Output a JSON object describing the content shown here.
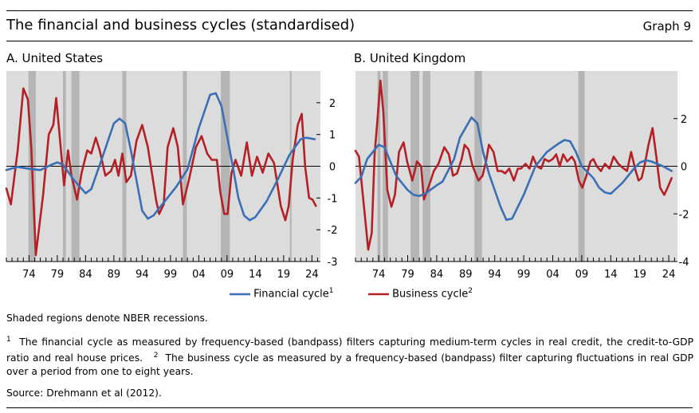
{
  "header": {
    "title": "The financial and business cycles (standardised)",
    "graph_label": "Graph 9"
  },
  "legend": {
    "financial": "Financial cycle",
    "financial_note": "1",
    "business": "Business cycle",
    "business_note": "2"
  },
  "colors": {
    "financial": "#3a6fb5",
    "business": "#b32025",
    "recession": "#b5b5b5",
    "panel_bg": "#dcdcdc"
  },
  "notes": {
    "shading": "Shaded regions denote NBER recessions.",
    "fn1_mark": "1",
    "fn1": "The financial cycle as measured by frequency-based (bandpass) filters capturing medium-term cycles in real credit, the credit-to-GDP ratio and real house prices.",
    "fn2_mark": "2",
    "fn2": "The business cycle as measured by a frequency-based (bandpass) filter capturing fluctuations in real GDP over a period from one to eight years.",
    "source": "Source: Drehmann et al (2012)."
  },
  "chart_data": [
    {
      "type": "line",
      "title": "A. United States",
      "x_ticks": [
        "74",
        "79",
        "84",
        "89",
        "94",
        "99",
        "04",
        "09",
        "14",
        "19",
        "24"
      ],
      "x_tick_years": [
        1974,
        1979,
        1984,
        1989,
        1994,
        1999,
        2004,
        2009,
        2014,
        2019,
        2024
      ],
      "xlim": [
        1970,
        2025.5
      ],
      "ylim": [
        -3,
        3
      ],
      "y_ticks": [
        2,
        1,
        0,
        -1,
        -2,
        -3
      ],
      "recessions": [
        [
          1973.9,
          1975.2
        ],
        [
          1980.0,
          1980.5
        ],
        [
          1981.5,
          1982.9
        ],
        [
          1990.5,
          1991.2
        ],
        [
          2001.2,
          2001.9
        ],
        [
          2007.9,
          2009.5
        ],
        [
          2020.1,
          2020.4
        ]
      ],
      "series": [
        {
          "name": "Financial cycle",
          "key": "financial",
          "points": [
            [
              1970,
              -0.12
            ],
            [
              1972,
              -0.02
            ],
            [
              1974,
              -0.08
            ],
            [
              1976,
              -0.12
            ],
            [
              1978,
              0.05
            ],
            [
              1979,
              0.12
            ],
            [
              1980,
              0.05
            ],
            [
              1982,
              -0.45
            ],
            [
              1984,
              -0.85
            ],
            [
              1985,
              -0.72
            ],
            [
              1987,
              0.3
            ],
            [
              1989,
              1.35
            ],
            [
              1990,
              1.5
            ],
            [
              1991,
              1.35
            ],
            [
              1992,
              0.5
            ],
            [
              1994,
              -1.4
            ],
            [
              1995,
              -1.65
            ],
            [
              1996,
              -1.55
            ],
            [
              1998,
              -1.1
            ],
            [
              2000,
              -0.65
            ],
            [
              2002,
              -0.1
            ],
            [
              2004,
              1.2
            ],
            [
              2006,
              2.25
            ],
            [
              2007,
              2.3
            ],
            [
              2008,
              1.9
            ],
            [
              2010,
              0.0
            ],
            [
              2011,
              -1.0
            ],
            [
              2012,
              -1.55
            ],
            [
              2013,
              -1.7
            ],
            [
              2014,
              -1.6
            ],
            [
              2016,
              -1.1
            ],
            [
              2018,
              -0.4
            ],
            [
              2020,
              0.35
            ],
            [
              2022,
              0.85
            ],
            [
              2023,
              0.9
            ],
            [
              2024.5,
              0.85
            ]
          ]
        },
        {
          "name": "Business cycle",
          "key": "business",
          "points": [
            [
              1970,
              -0.7
            ],
            [
              1970.8,
              -1.2
            ],
            [
              1972,
              0.5
            ],
            [
              1973,
              2.45
            ],
            [
              1973.8,
              2.1
            ],
            [
              1974.4,
              0.6
            ],
            [
              1975.2,
              -2.8
            ],
            [
              1976.5,
              -0.9
            ],
            [
              1977.5,
              1.0
            ],
            [
              1978.3,
              1.3
            ],
            [
              1978.8,
              2.15
            ],
            [
              1979.3,
              1.2
            ],
            [
              1980.2,
              -0.6
            ],
            [
              1980.9,
              0.5
            ],
            [
              1981.5,
              -0.3
            ],
            [
              1982.5,
              -1.05
            ],
            [
              1983.3,
              -0.2
            ],
            [
              1984.3,
              0.5
            ],
            [
              1985,
              0.4
            ],
            [
              1985.8,
              0.9
            ],
            [
              1986.5,
              0.5
            ],
            [
              1987.5,
              -0.3
            ],
            [
              1988.5,
              -0.15
            ],
            [
              1989.2,
              0.2
            ],
            [
              1989.8,
              -0.3
            ],
            [
              1990.5,
              0.4
            ],
            [
              1991.2,
              -0.5
            ],
            [
              1992,
              -0.3
            ],
            [
              1993,
              0.8
            ],
            [
              1994,
              1.3
            ],
            [
              1995,
              0.6
            ],
            [
              1996.5,
              -1.1
            ],
            [
              1997,
              -1.5
            ],
            [
              1997.8,
              -1.2
            ],
            [
              1998.5,
              0.6
            ],
            [
              1999.5,
              1.2
            ],
            [
              2000.3,
              0.6
            ],
            [
              2001.2,
              -1.2
            ],
            [
              2002.3,
              -0.4
            ],
            [
              2003.5,
              0.6
            ],
            [
              2004.5,
              0.95
            ],
            [
              2005.5,
              0.4
            ],
            [
              2006.3,
              0.2
            ],
            [
              2007.2,
              0.2
            ],
            [
              2007.8,
              -0.8
            ],
            [
              2008.5,
              -1.5
            ],
            [
              2009.1,
              -1.5
            ],
            [
              2009.8,
              -0.2
            ],
            [
              2010.5,
              0.2
            ],
            [
              2011.5,
              -0.3
            ],
            [
              2012.5,
              0.75
            ],
            [
              2013.4,
              -0.3
            ],
            [
              2014.3,
              0.3
            ],
            [
              2015.3,
              -0.2
            ],
            [
              2016.3,
              0.4
            ],
            [
              2017.3,
              0.1
            ],
            [
              2018.5,
              -1.25
            ],
            [
              2019.3,
              -1.7
            ],
            [
              2019.9,
              -1.25
            ],
            [
              2020.6,
              0.2
            ],
            [
              2021.5,
              1.3
            ],
            [
              2022.2,
              1.65
            ],
            [
              2022.8,
              0.0
            ],
            [
              2023.5,
              -1.0
            ],
            [
              2024.1,
              -1.05
            ],
            [
              2024.7,
              -1.25
            ]
          ]
        }
      ]
    },
    {
      "type": "line",
      "title": "B. United Kingdom",
      "x_ticks": [
        "74",
        "79",
        "84",
        "89",
        "94",
        "99",
        "04",
        "09",
        "14",
        "19",
        "24"
      ],
      "x_tick_years": [
        1974,
        1979,
        1984,
        1989,
        1994,
        1999,
        2004,
        2009,
        2014,
        2019,
        2024
      ],
      "xlim": [
        1970,
        2025.5
      ],
      "ylim": [
        -4,
        4
      ],
      "y_ticks": [
        2,
        0,
        -2,
        -4
      ],
      "recessions": [
        [
          1973.8,
          1974.3
        ],
        [
          1974.7,
          1975.6
        ],
        [
          1979.5,
          1981.0
        ],
        [
          1981.6,
          1982.9
        ],
        [
          1990.5,
          1991.8
        ],
        [
          2008.4,
          2009.5
        ]
      ],
      "series": [
        {
          "name": "Financial cycle",
          "key": "financial",
          "points": [
            [
              1970,
              -0.7
            ],
            [
              1971,
              -0.45
            ],
            [
              1972,
              0.3
            ],
            [
              1974,
              0.9
            ],
            [
              1975,
              0.8
            ],
            [
              1976,
              0.2
            ],
            [
              1977,
              -0.4
            ],
            [
              1979,
              -1.0
            ],
            [
              1980,
              -1.2
            ],
            [
              1981,
              -1.25
            ],
            [
              1982,
              -1.15
            ],
            [
              1984,
              -0.8
            ],
            [
              1985,
              -0.65
            ],
            [
              1987,
              0.3
            ],
            [
              1988,
              1.2
            ],
            [
              1990,
              2.05
            ],
            [
              1991,
              1.8
            ],
            [
              1992,
              0.6
            ],
            [
              1993,
              -0.3
            ],
            [
              1995,
              -1.7
            ],
            [
              1996,
              -2.25
            ],
            [
              1997,
              -2.2
            ],
            [
              1999,
              -1.2
            ],
            [
              2001,
              0.0
            ],
            [
              2003,
              0.6
            ],
            [
              2005,
              0.95
            ],
            [
              2006,
              1.1
            ],
            [
              2007,
              1.05
            ],
            [
              2008,
              0.6
            ],
            [
              2009,
              0.0
            ],
            [
              2011,
              -0.5
            ],
            [
              2012,
              -0.9
            ],
            [
              2013,
              -1.1
            ],
            [
              2014,
              -1.15
            ],
            [
              2016,
              -0.7
            ],
            [
              2018,
              -0.1
            ],
            [
              2019,
              0.15
            ],
            [
              2020,
              0.25
            ],
            [
              2021,
              0.2
            ],
            [
              2023,
              0.0
            ],
            [
              2024.5,
              -0.2
            ]
          ]
        },
        {
          "name": "Business cycle",
          "key": "business",
          "points": [
            [
              1970,
              0.65
            ],
            [
              1970.6,
              0.4
            ],
            [
              1971.3,
              -1.3
            ],
            [
              1972.2,
              -3.5
            ],
            [
              1972.8,
              -2.8
            ],
            [
              1973.3,
              0.5
            ],
            [
              1973.8,
              2.0
            ],
            [
              1974.3,
              3.6
            ],
            [
              1974.8,
              2.3
            ],
            [
              1975.5,
              -1.0
            ],
            [
              1976.2,
              -1.7
            ],
            [
              1976.8,
              -1.2
            ],
            [
              1977.5,
              0.6
            ],
            [
              1978.3,
              1.0
            ],
            [
              1978.9,
              0.2
            ],
            [
              1979.8,
              -0.6
            ],
            [
              1980.6,
              0.2
            ],
            [
              1981.3,
              0.0
            ],
            [
              1981.8,
              -1.4
            ],
            [
              1982.7,
              -0.8
            ],
            [
              1983.5,
              -0.2
            ],
            [
              1984.3,
              0.1
            ],
            [
              1985.3,
              0.8
            ],
            [
              1986.1,
              0.5
            ],
            [
              1986.8,
              -0.4
            ],
            [
              1987.5,
              -0.3
            ],
            [
              1988.3,
              0.3
            ],
            [
              1988.8,
              0.9
            ],
            [
              1989.5,
              0.7
            ],
            [
              1990.2,
              0.0
            ],
            [
              1991.2,
              -0.6
            ],
            [
              1991.9,
              -0.4
            ],
            [
              1992.5,
              0.2
            ],
            [
              1993,
              0.9
            ],
            [
              1993.8,
              0.6
            ],
            [
              1994.5,
              -0.2
            ],
            [
              1995.2,
              -0.2
            ],
            [
              1995.8,
              -0.3
            ],
            [
              1996.5,
              -0.1
            ],
            [
              1997.3,
              -0.6
            ],
            [
              1998,
              -0.1
            ],
            [
              1998.5,
              -0.1
            ],
            [
              1999.3,
              0.1
            ],
            [
              2000,
              -0.1
            ],
            [
              2000.6,
              0.4
            ],
            [
              2001.3,
              0.0
            ],
            [
              2002,
              -0.1
            ],
            [
              2002.6,
              0.3
            ],
            [
              2003.3,
              0.2
            ],
            [
              2004,
              0.3
            ],
            [
              2004.6,
              0.5
            ],
            [
              2005.2,
              0.0
            ],
            [
              2005.8,
              0.5
            ],
            [
              2006.5,
              0.2
            ],
            [
              2007.3,
              0.4
            ],
            [
              2007.8,
              0.2
            ],
            [
              2008.5,
              -0.6
            ],
            [
              2009.1,
              -0.9
            ],
            [
              2009.8,
              -0.4
            ],
            [
              2010.5,
              0.2
            ],
            [
              2011,
              0.3
            ],
            [
              2011.6,
              0.0
            ],
            [
              2012.3,
              -0.2
            ],
            [
              2013,
              0.1
            ],
            [
              2013.8,
              -0.1
            ],
            [
              2014.5,
              0.4
            ],
            [
              2015.3,
              0.1
            ],
            [
              2016,
              -0.05
            ],
            [
              2016.8,
              -0.2
            ],
            [
              2017.5,
              0.6
            ],
            [
              2018.3,
              -0.2
            ],
            [
              2018.8,
              -0.6
            ],
            [
              2019.3,
              -0.5
            ],
            [
              2019.8,
              0.0
            ],
            [
              2020.5,
              0.9
            ],
            [
              2021.2,
              1.6
            ],
            [
              2021.8,
              0.5
            ],
            [
              2022.5,
              -0.9
            ],
            [
              2023.2,
              -1.2
            ],
            [
              2023.8,
              -0.9
            ],
            [
              2024.5,
              -0.5
            ]
          ]
        }
      ]
    }
  ]
}
